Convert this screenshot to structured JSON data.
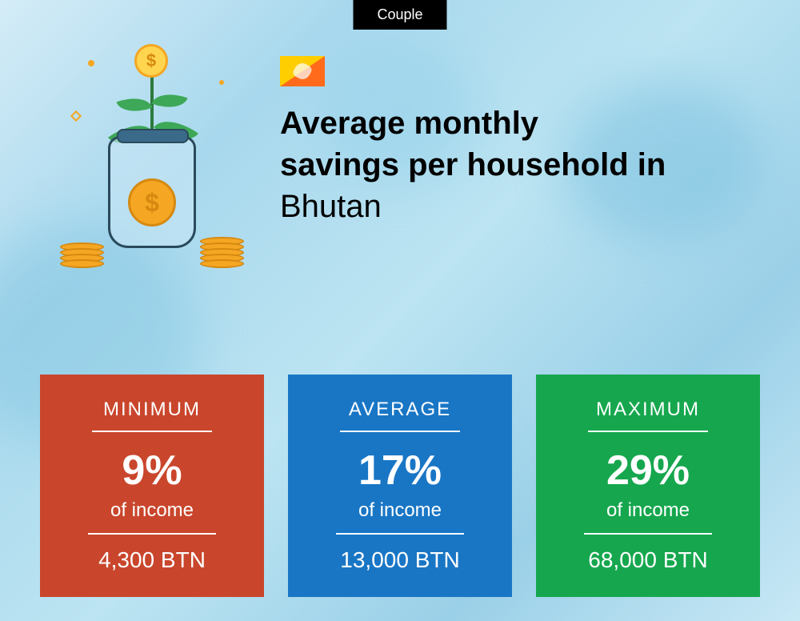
{
  "badge": {
    "label": "Couple"
  },
  "header": {
    "title_line1": "Average monthly",
    "title_line2": "savings per household in",
    "country": "Bhutan"
  },
  "flag": {
    "top_color": "#ffce00",
    "bottom_color": "#ff6b1a"
  },
  "cards": [
    {
      "label": "MINIMUM",
      "percent": "9%",
      "subtext": "of income",
      "amount": "4,300 BTN",
      "bg_color": "#c9462c"
    },
    {
      "label": "AVERAGE",
      "percent": "17%",
      "subtext": "of income",
      "amount": "13,000 BTN",
      "bg_color": "#1976c5"
    },
    {
      "label": "MAXIMUM",
      "percent": "29%",
      "subtext": "of income",
      "amount": "68,000 BTN",
      "bg_color": "#16a74e"
    }
  ],
  "background": {
    "base_gradient": [
      "#d4ecf7",
      "#a8d8ed",
      "#bce4f2",
      "#9ad0e8",
      "#c8e8f5"
    ]
  },
  "illustration": {
    "jar_fill": "rgba(200,230,245,0.6)",
    "jar_border": "#2a4a5c",
    "coin_color": "#f5a623",
    "coin_border": "#d68910",
    "leaf_color": "#3da858",
    "stem_color": "#2d7a3d"
  }
}
